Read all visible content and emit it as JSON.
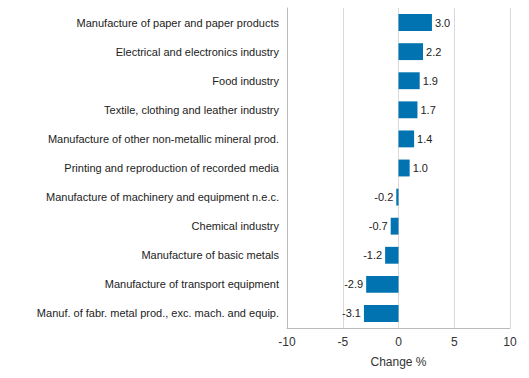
{
  "chart_data": {
    "type": "bar",
    "orientation": "horizontal",
    "x_label": "Change %",
    "categories": [
      "Manufacture of paper and paper products",
      "Electrical and electronics industry",
      "Food industry",
      "Textile, clothing and leather industry",
      "Manufacture of other non-metallic mineral prod.",
      "Printing and reproduction of recorded media",
      "Manufacture of machinery and equipment n.e.c.",
      "Chemical industry",
      "Manufacture of basic metals",
      "Manufacture of transport equipment",
      "Manuf. of fabr. metal prod., exc. mach. and equip."
    ],
    "values": [
      3.0,
      2.2,
      1.9,
      1.7,
      1.4,
      1.0,
      -0.2,
      -0.7,
      -1.2,
      -2.9,
      -3.1
    ],
    "value_labels": [
      "3.0",
      "2.2",
      "1.9",
      "1.7",
      "1.4",
      "1.0",
      "-0.2",
      "-0.7",
      "-1.2",
      "-2.9",
      "-3.1"
    ],
    "color": "#0073b0",
    "xlim": [
      -10,
      10
    ],
    "xticks": [
      -10,
      -5,
      0,
      5,
      10
    ],
    "grid": true,
    "data_labels": true
  }
}
